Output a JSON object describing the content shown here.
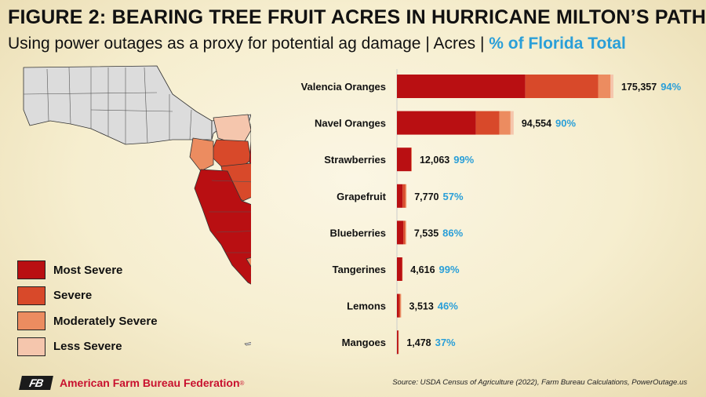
{
  "header": {
    "title": "FIGURE 2: BEARING TREE FRUIT ACRES IN HURRICANE MILTON’S PATH",
    "subtitle_main": "Using power outages as a proxy for potential ag damage | Acres | ",
    "subtitle_highlight": "% of Florida Total"
  },
  "colors": {
    "most_severe": "#b90f12",
    "severe": "#d8492a",
    "moderately_severe": "#ec8c60",
    "less_severe": "#f5c6ad",
    "unaffected": "#dcdcdc",
    "percent_text": "#2a9fd8",
    "brand_red": "#c8102e"
  },
  "legend": [
    {
      "label": "Most Severe",
      "color": "#b90f12"
    },
    {
      "label": "Severe",
      "color": "#d8492a"
    },
    {
      "label": "Moderately Severe",
      "color": "#ec8c60"
    },
    {
      "label": "Less Severe",
      "color": "#f5c6ad"
    }
  ],
  "chart_data": {
    "type": "bar",
    "orientation": "horizontal",
    "stacked": true,
    "categories": [
      "Valencia Oranges",
      "Navel Oranges",
      "Strawberries",
      "Grapefruit",
      "Blueberries",
      "Tangerines",
      "Lemons",
      "Mangoes"
    ],
    "series": [
      {
        "name": "Most Severe",
        "values": [
          104000,
          64000,
          11500,
          4600,
          5200,
          4150,
          1600,
          1100
        ]
      },
      {
        "name": "Severe",
        "values": [
          59000,
          19000,
          400,
          2200,
          1400,
          250,
          1100,
          250
        ]
      },
      {
        "name": "Moderately Severe",
        "values": [
          10000,
          9000,
          150,
          800,
          800,
          150,
          700,
          100
        ]
      },
      {
        "name": "Less Severe",
        "values": [
          2357,
          2554,
          13,
          170,
          135,
          66,
          113,
          28
        ]
      }
    ],
    "totals": [
      175357,
      94554,
      12063,
      7770,
      7535,
      4616,
      3513,
      1478
    ],
    "total_labels": [
      "175,357",
      "94,554",
      "12,063",
      "7,770",
      "7,535",
      "4,616",
      "3,513",
      "1,478"
    ],
    "percent_labels": [
      "94%",
      "90%",
      "99%",
      "57%",
      "86%",
      "99%",
      "46%",
      "37%"
    ]
  },
  "footer": {
    "logo_text": "FB",
    "org_name": "American Farm Bureau Federation",
    "registered": "®",
    "source": "Source: USDA Census of Agriculture (2022), Farm Bureau Calculations, PowerOutage.us"
  }
}
